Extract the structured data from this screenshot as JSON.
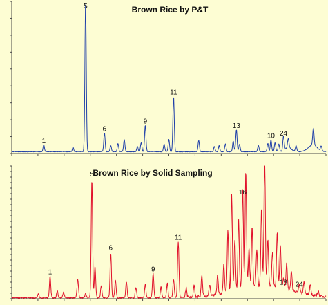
{
  "chart_data": [
    {
      "type": "line",
      "title": "Brown Rice by P&T",
      "xlabel": "",
      "ylabel": "",
      "xlim": [
        0,
        100
      ],
      "ylim": [
        0,
        100
      ],
      "grid": false,
      "line_color": "#1f3fa8",
      "axis_color": "#4a4a4a",
      "baseline": 1.2,
      "peaks": [
        {
          "label": "1",
          "x": 10.2,
          "y": 4.5
        },
        {
          "label": "5",
          "x": 23.5,
          "y": 99.5
        },
        {
          "label": "6",
          "x": 29.5,
          "y": 12.5
        },
        {
          "label": "9",
          "x": 42.5,
          "y": 17.5
        },
        {
          "label": "11",
          "x": 51.5,
          "y": 36.5
        },
        {
          "label": "13",
          "x": 71.5,
          "y": 14.5
        },
        {
          "label": "10",
          "x": 82.5,
          "y": 8.0
        },
        {
          "label": "24",
          "x": 86.5,
          "y": 9.5
        }
      ],
      "minor_peaks": [
        {
          "x": 19.5,
          "y": 3.0
        },
        {
          "x": 31.5,
          "y": 4.0
        },
        {
          "x": 33.8,
          "y": 5.5
        },
        {
          "x": 35.8,
          "y": 8.0
        },
        {
          "x": 40.0,
          "y": 3.5
        },
        {
          "x": 41.2,
          "y": 6.0
        },
        {
          "x": 48.5,
          "y": 5.0
        },
        {
          "x": 50.0,
          "y": 8.0
        },
        {
          "x": 59.5,
          "y": 7.5
        },
        {
          "x": 64.5,
          "y": 3.5
        },
        {
          "x": 66.0,
          "y": 4.0
        },
        {
          "x": 68.0,
          "y": 5.0
        },
        {
          "x": 70.5,
          "y": 7.0
        },
        {
          "x": 72.5,
          "y": 5.0
        },
        {
          "x": 78.5,
          "y": 4.0
        },
        {
          "x": 81.5,
          "y": 5.5
        },
        {
          "x": 83.8,
          "y": 6.0
        },
        {
          "x": 85.0,
          "y": 5.0
        },
        {
          "x": 88.0,
          "y": 6.0
        },
        {
          "x": 90.5,
          "y": 4.0
        },
        {
          "x": 96.0,
          "y": 11.0
        },
        {
          "x": 98.5,
          "y": 3.0
        }
      ]
    },
    {
      "type": "line",
      "title": "Brown Rice by Solid Sampling",
      "xlabel": "",
      "ylabel": "",
      "xlim": [
        0,
        100
      ],
      "ylim": [
        0,
        100
      ],
      "grid": false,
      "line_color": "#e0102a",
      "axis_color": "#4a4a4a",
      "baseline": 0.8,
      "peaks": [
        {
          "label": "1",
          "x": 12.2,
          "y": 16.0
        },
        {
          "label": "5",
          "x": 25.5,
          "y": 89.5
        },
        {
          "label": "6",
          "x": 31.5,
          "y": 34.0
        },
        {
          "label": "9",
          "x": 45.0,
          "y": 18.0
        },
        {
          "label": "11",
          "x": 53.0,
          "y": 42.0
        },
        {
          "label": "16",
          "x": 73.5,
          "y": 76.0
        },
        {
          "label": "18",
          "x": 86.5,
          "y": 8.0
        },
        {
          "label": "24",
          "x": 91.5,
          "y": 6.5
        }
      ],
      "minor_peaks": [
        {
          "x": 8.5,
          "y": 3.0
        },
        {
          "x": 14.5,
          "y": 5.0
        },
        {
          "x": 16.5,
          "y": 4.0
        },
        {
          "x": 21.0,
          "y": 14.0
        },
        {
          "x": 23.5,
          "y": 3.0
        },
        {
          "x": 26.5,
          "y": 24.0
        },
        {
          "x": 28.5,
          "y": 9.0
        },
        {
          "x": 33.0,
          "y": 13.0
        },
        {
          "x": 36.5,
          "y": 12.0
        },
        {
          "x": 39.5,
          "y": 8.0
        },
        {
          "x": 42.5,
          "y": 10.0
        },
        {
          "x": 47.5,
          "y": 8.0
        },
        {
          "x": 49.5,
          "y": 11.0
        },
        {
          "x": 51.5,
          "y": 14.0
        },
        {
          "x": 55.5,
          "y": 7.0
        },
        {
          "x": 58.0,
          "y": 9.0
        },
        {
          "x": 60.5,
          "y": 16.0
        },
        {
          "x": 63.0,
          "y": 8.0
        },
        {
          "x": 65.5,
          "y": 14.0
        },
        {
          "x": 67.5,
          "y": 22.0
        },
        {
          "x": 68.8,
          "y": 46.0
        },
        {
          "x": 70.0,
          "y": 72.0
        },
        {
          "x": 71.0,
          "y": 38.0
        },
        {
          "x": 72.2,
          "y": 52.0
        },
        {
          "x": 74.5,
          "y": 88.0
        },
        {
          "x": 75.5,
          "y": 30.0
        },
        {
          "x": 76.5,
          "y": 45.0
        },
        {
          "x": 78.0,
          "y": 28.0
        },
        {
          "x": 79.5,
          "y": 58.0
        },
        {
          "x": 80.5,
          "y": 98.0
        },
        {
          "x": 81.5,
          "y": 36.0
        },
        {
          "x": 83.0,
          "y": 26.0
        },
        {
          "x": 84.5,
          "y": 42.0
        },
        {
          "x": 85.5,
          "y": 32.0
        },
        {
          "x": 87.5,
          "y": 20.0
        },
        {
          "x": 89.0,
          "y": 14.0
        },
        {
          "x": 93.0,
          "y": 9.0
        },
        {
          "x": 95.0,
          "y": 7.0
        },
        {
          "x": 97.5,
          "y": 4.0
        }
      ],
      "hump": {
        "center": 80.0,
        "width": 9.0,
        "height": 9.0
      }
    }
  ]
}
